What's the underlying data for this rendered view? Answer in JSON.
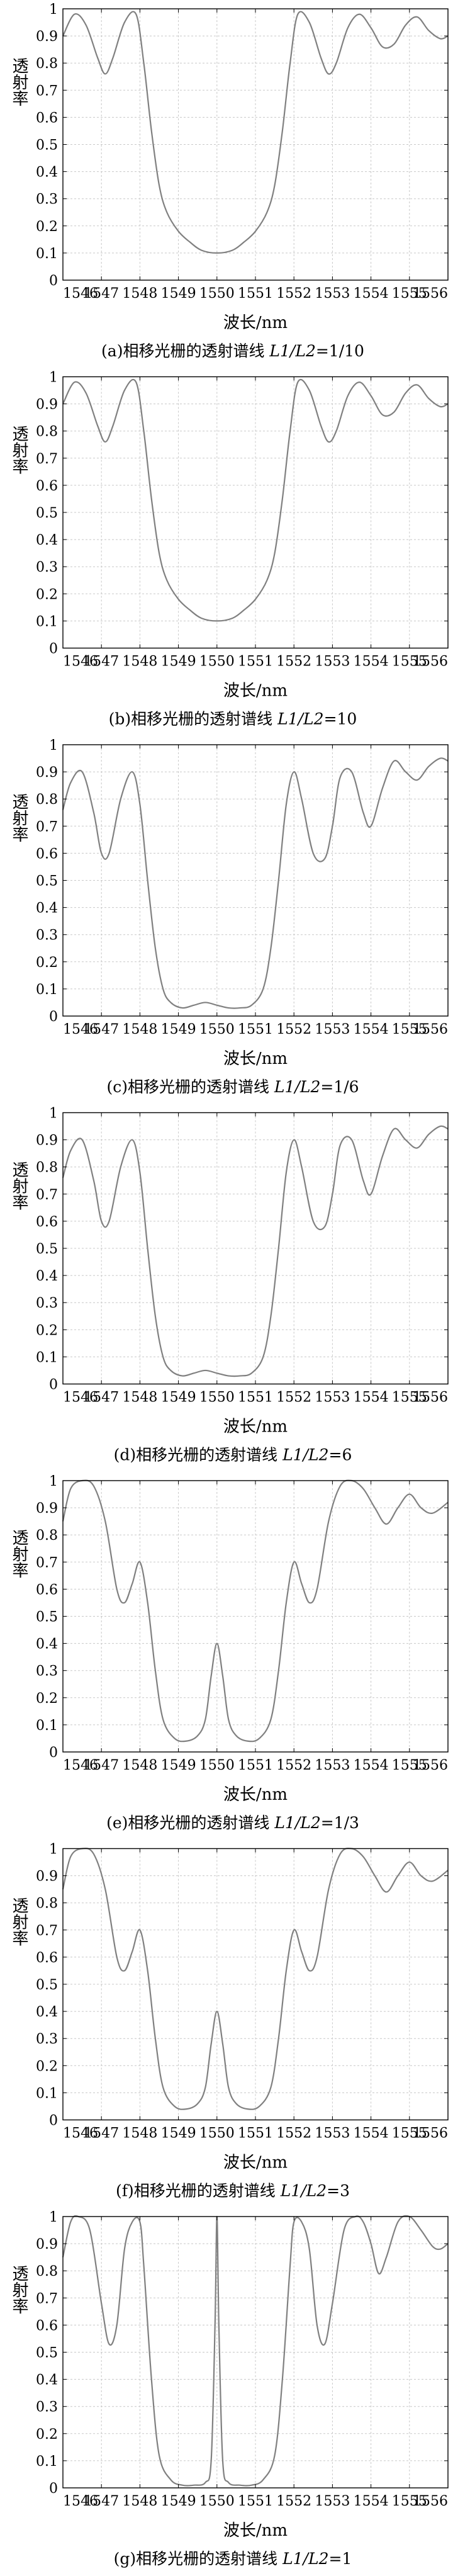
{
  "figure": {
    "common": {
      "ylabel": "透射率",
      "xlabel": "波长/nm",
      "xlim": [
        1546,
        1556
      ],
      "ylim": [
        0,
        1
      ],
      "xticks": [
        1546,
        1547,
        1548,
        1549,
        1550,
        1551,
        1552,
        1553,
        1554,
        1555,
        1556
      ],
      "yticks": [
        0,
        0.1,
        0.2,
        0.3,
        0.4,
        0.5,
        0.6,
        0.7,
        0.8,
        0.9,
        1
      ],
      "grid": true,
      "line_color": "#808080"
    },
    "panels": [
      {
        "caption_prefix": "(a)相移光栅的透射谱线 ",
        "caption_ratio": "L1/L2",
        "caption_value": "=1/10"
      },
      {
        "caption_prefix": "(b)相移光栅的透射谱线 ",
        "caption_ratio": "L1/L2",
        "caption_value": "=10"
      },
      {
        "caption_prefix": "(c)相移光栅的透射谱线 ",
        "caption_ratio": "L1/L2",
        "caption_value": "=1/6"
      },
      {
        "caption_prefix": "(d)相移光栅的透射谱线 ",
        "caption_ratio": "L1/L2",
        "caption_value": "=6"
      },
      {
        "caption_prefix": "(e)相移光栅的透射谱线 ",
        "caption_ratio": "L1/L2",
        "caption_value": "=1/3"
      },
      {
        "caption_prefix": "(f)相移光栅的透射谱线 ",
        "caption_ratio": "L1/L2",
        "caption_value": "=3"
      },
      {
        "caption_prefix": "(g)相移光栅的透射谱线 ",
        "caption_ratio": "L1/L2",
        "caption_value": "=1"
      }
    ]
  },
  "chart_data": [
    {
      "type": "line",
      "xlabel": "波长/nm",
      "ylabel": "透射率",
      "xlim": [
        1546,
        1556
      ],
      "ylim": [
        0,
        1
      ],
      "grid": true,
      "series": [
        {
          "x": [
            1546,
            1546.3,
            1546.6,
            1546.9,
            1547.1,
            1547.3,
            1547.6,
            1547.9,
            1548.1,
            1548.3,
            1548.5,
            1548.7,
            1549,
            1549.3,
            1549.6,
            1550,
            1550.4,
            1550.7,
            1551,
            1551.3,
            1551.5,
            1551.7,
            1551.9,
            1552.1,
            1552.4,
            1552.7,
            1552.9,
            1553.1,
            1553.4,
            1553.7,
            1554,
            1554.3,
            1554.6,
            1554.9,
            1555.2,
            1555.5,
            1555.8,
            1556
          ],
          "y": [
            0.9,
            0.98,
            0.94,
            0.82,
            0.76,
            0.82,
            0.95,
            0.98,
            0.8,
            0.55,
            0.35,
            0.25,
            0.18,
            0.14,
            0.11,
            0.1,
            0.11,
            0.14,
            0.18,
            0.25,
            0.35,
            0.55,
            0.8,
            0.98,
            0.95,
            0.82,
            0.76,
            0.8,
            0.93,
            0.98,
            0.93,
            0.86,
            0.87,
            0.94,
            0.97,
            0.92,
            0.89,
            0.9
          ]
        }
      ]
    },
    {
      "type": "line",
      "xlabel": "波长/nm",
      "ylabel": "透射率",
      "xlim": [
        1546,
        1556
      ],
      "ylim": [
        0,
        1
      ],
      "grid": true,
      "series": [
        {
          "x": [
            1546,
            1546.3,
            1546.6,
            1546.9,
            1547.1,
            1547.3,
            1547.6,
            1547.9,
            1548.1,
            1548.3,
            1548.5,
            1548.7,
            1549,
            1549.3,
            1549.6,
            1550,
            1550.4,
            1550.7,
            1551,
            1551.3,
            1551.5,
            1551.7,
            1551.9,
            1552.1,
            1552.4,
            1552.7,
            1552.9,
            1553.1,
            1553.4,
            1553.7,
            1554,
            1554.3,
            1554.6,
            1554.9,
            1555.2,
            1555.5,
            1555.8,
            1556
          ],
          "y": [
            0.9,
            0.98,
            0.94,
            0.82,
            0.76,
            0.82,
            0.95,
            0.98,
            0.8,
            0.55,
            0.35,
            0.25,
            0.18,
            0.14,
            0.11,
            0.1,
            0.11,
            0.14,
            0.18,
            0.25,
            0.35,
            0.55,
            0.8,
            0.98,
            0.95,
            0.82,
            0.76,
            0.8,
            0.93,
            0.98,
            0.93,
            0.86,
            0.87,
            0.94,
            0.97,
            0.92,
            0.89,
            0.9
          ]
        }
      ]
    },
    {
      "type": "line",
      "xlabel": "波长/nm",
      "ylabel": "透射率",
      "xlim": [
        1546,
        1556
      ],
      "ylim": [
        0,
        1
      ],
      "grid": true,
      "series": [
        {
          "x": [
            1546,
            1546.2,
            1546.5,
            1546.8,
            1547,
            1547.2,
            1547.5,
            1547.8,
            1548,
            1548.2,
            1548.4,
            1548.6,
            1548.8,
            1549.1,
            1549.4,
            1549.7,
            1550,
            1550.3,
            1550.6,
            1550.9,
            1551.2,
            1551.4,
            1551.6,
            1551.8,
            1552,
            1552.2,
            1552.5,
            1552.8,
            1553,
            1553.2,
            1553.5,
            1553.8,
            1554,
            1554.3,
            1554.6,
            1554.9,
            1555.2,
            1555.5,
            1555.8,
            1556
          ],
          "y": [
            0.76,
            0.86,
            0.9,
            0.75,
            0.6,
            0.6,
            0.8,
            0.9,
            0.78,
            0.5,
            0.25,
            0.1,
            0.05,
            0.03,
            0.04,
            0.05,
            0.04,
            0.03,
            0.03,
            0.04,
            0.1,
            0.25,
            0.5,
            0.78,
            0.9,
            0.8,
            0.6,
            0.58,
            0.7,
            0.88,
            0.9,
            0.75,
            0.7,
            0.84,
            0.94,
            0.9,
            0.87,
            0.92,
            0.95,
            0.94
          ]
        }
      ]
    },
    {
      "type": "line",
      "xlabel": "波长/nm",
      "ylabel": "透射率",
      "xlim": [
        1546,
        1556
      ],
      "ylim": [
        0,
        1
      ],
      "grid": true,
      "series": [
        {
          "x": [
            1546,
            1546.2,
            1546.5,
            1546.8,
            1547,
            1547.2,
            1547.5,
            1547.8,
            1548,
            1548.2,
            1548.4,
            1548.6,
            1548.8,
            1549.1,
            1549.4,
            1549.7,
            1550,
            1550.3,
            1550.6,
            1550.9,
            1551.2,
            1551.4,
            1551.6,
            1551.8,
            1552,
            1552.2,
            1552.5,
            1552.8,
            1553,
            1553.2,
            1553.5,
            1553.8,
            1554,
            1554.3,
            1554.6,
            1554.9,
            1555.2,
            1555.5,
            1555.8,
            1556
          ],
          "y": [
            0.76,
            0.86,
            0.9,
            0.75,
            0.6,
            0.6,
            0.8,
            0.9,
            0.78,
            0.5,
            0.25,
            0.1,
            0.05,
            0.03,
            0.04,
            0.05,
            0.04,
            0.03,
            0.03,
            0.04,
            0.1,
            0.25,
            0.5,
            0.78,
            0.9,
            0.8,
            0.6,
            0.58,
            0.7,
            0.88,
            0.9,
            0.75,
            0.7,
            0.84,
            0.94,
            0.9,
            0.87,
            0.92,
            0.95,
            0.94
          ]
        }
      ]
    },
    {
      "type": "line",
      "xlabel": "波长/nm",
      "ylabel": "透射率",
      "xlim": [
        1546,
        1556
      ],
      "ylim": [
        0,
        1
      ],
      "grid": true,
      "series": [
        {
          "x": [
            1546,
            1546.2,
            1546.5,
            1546.8,
            1547.1,
            1547.4,
            1547.6,
            1547.8,
            1548,
            1548.2,
            1548.4,
            1548.6,
            1548.9,
            1549.2,
            1549.5,
            1549.7,
            1549.85,
            1550,
            1550.15,
            1550.3,
            1550.5,
            1550.8,
            1551.1,
            1551.4,
            1551.6,
            1551.8,
            1552,
            1552.2,
            1552.4,
            1552.6,
            1552.9,
            1553.2,
            1553.5,
            1553.8,
            1554.1,
            1554.4,
            1554.7,
            1555,
            1555.3,
            1555.6,
            1556
          ],
          "y": [
            0.85,
            0.97,
            1,
            0.98,
            0.85,
            0.6,
            0.55,
            0.62,
            0.7,
            0.55,
            0.3,
            0.12,
            0.05,
            0.04,
            0.06,
            0.12,
            0.28,
            0.4,
            0.28,
            0.12,
            0.06,
            0.04,
            0.05,
            0.12,
            0.3,
            0.55,
            0.7,
            0.62,
            0.55,
            0.6,
            0.85,
            0.98,
            1,
            0.97,
            0.9,
            0.84,
            0.9,
            0.95,
            0.9,
            0.88,
            0.92
          ]
        }
      ]
    },
    {
      "type": "line",
      "xlabel": "波长/nm",
      "ylabel": "透射率",
      "xlim": [
        1546,
        1556
      ],
      "ylim": [
        0,
        1
      ],
      "grid": true,
      "series": [
        {
          "x": [
            1546,
            1546.2,
            1546.5,
            1546.8,
            1547.1,
            1547.4,
            1547.6,
            1547.8,
            1548,
            1548.2,
            1548.4,
            1548.6,
            1548.9,
            1549.2,
            1549.5,
            1549.7,
            1549.85,
            1550,
            1550.15,
            1550.3,
            1550.5,
            1550.8,
            1551.1,
            1551.4,
            1551.6,
            1551.8,
            1552,
            1552.2,
            1552.4,
            1552.6,
            1552.9,
            1553.2,
            1553.5,
            1553.8,
            1554.1,
            1554.4,
            1554.7,
            1555,
            1555.3,
            1555.6,
            1556
          ],
          "y": [
            0.85,
            0.97,
            1,
            0.98,
            0.85,
            0.6,
            0.55,
            0.62,
            0.7,
            0.55,
            0.3,
            0.12,
            0.05,
            0.04,
            0.06,
            0.12,
            0.28,
            0.4,
            0.28,
            0.12,
            0.06,
            0.04,
            0.05,
            0.12,
            0.3,
            0.55,
            0.7,
            0.62,
            0.55,
            0.6,
            0.85,
            0.98,
            1,
            0.97,
            0.9,
            0.84,
            0.9,
            0.95,
            0.9,
            0.88,
            0.92
          ]
        }
      ]
    },
    {
      "type": "line",
      "xlabel": "波长/nm",
      "ylabel": "透射率",
      "xlim": [
        1546,
        1556
      ],
      "ylim": [
        0,
        1
      ],
      "grid": true,
      "series": [
        {
          "x": [
            1546,
            1546.2,
            1546.4,
            1546.7,
            1547,
            1547.2,
            1547.4,
            1547.6,
            1547.8,
            1548,
            1548.1,
            1548.3,
            1548.5,
            1548.8,
            1549.1,
            1549.4,
            1549.7,
            1549.85,
            1549.95,
            1550,
            1550.05,
            1550.15,
            1550.3,
            1550.6,
            1550.9,
            1551.2,
            1551.5,
            1551.7,
            1551.9,
            1552,
            1552.2,
            1552.4,
            1552.6,
            1552.8,
            1553,
            1553.3,
            1553.6,
            1553.8,
            1554,
            1554.2,
            1554.4,
            1554.7,
            1555,
            1555.3,
            1555.6,
            1555.8,
            1556
          ],
          "y": [
            0.85,
            0.98,
            1,
            0.95,
            0.68,
            0.53,
            0.6,
            0.88,
            0.98,
            0.98,
            0.82,
            0.4,
            0.12,
            0.03,
            0.01,
            0.01,
            0.02,
            0.1,
            0.6,
            1,
            0.6,
            0.1,
            0.02,
            0.01,
            0.01,
            0.03,
            0.12,
            0.4,
            0.82,
            0.98,
            0.98,
            0.88,
            0.6,
            0.53,
            0.68,
            0.95,
            1,
            0.98,
            0.9,
            0.79,
            0.85,
            0.98,
            1,
            0.95,
            0.89,
            0.88,
            0.9
          ]
        }
      ]
    }
  ]
}
